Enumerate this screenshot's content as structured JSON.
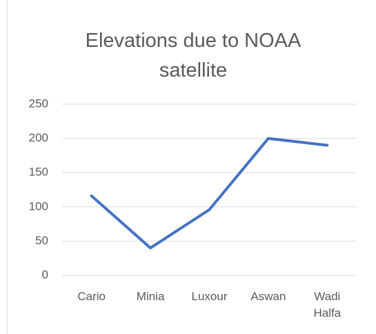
{
  "chart_data": {
    "type": "line",
    "title": "Elevations due to NOAA satellite",
    "categories": [
      "Cario",
      "Minia",
      "Luxour",
      "Aswan",
      "Wadi Halfa"
    ],
    "series": [
      {
        "color": "#4472c4",
        "values": [
          116,
          40,
          96,
          200,
          190
        ]
      }
    ],
    "ylim": [
      0,
      250
    ],
    "yticks": [
      0,
      50,
      100,
      150,
      200,
      250
    ],
    "grid": true
  }
}
